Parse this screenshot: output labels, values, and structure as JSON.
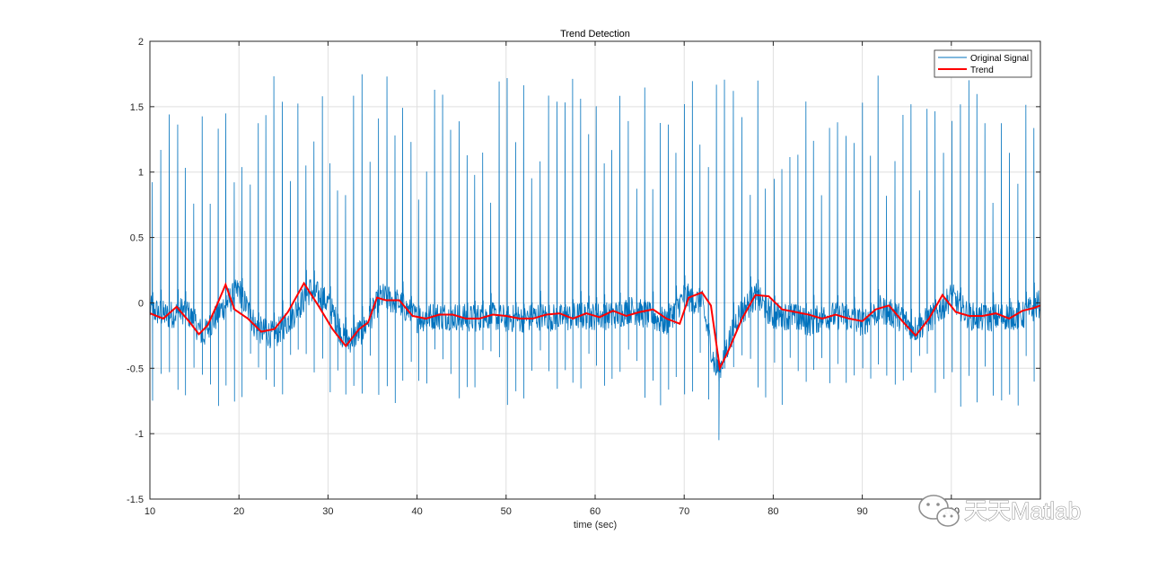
{
  "chart_data": {
    "type": "line",
    "title": "Trend Detection",
    "xlabel": "time (sec)",
    "ylabel": "",
    "xlim": [
      10,
      110
    ],
    "ylim": [
      -1.5,
      2
    ],
    "xticks": [
      10,
      20,
      30,
      40,
      50,
      60,
      70,
      80,
      90,
      100
    ],
    "yticks": [
      -1.5,
      -1,
      -0.5,
      0,
      0.5,
      1,
      1.5,
      2
    ],
    "grid": true,
    "legend_position": "top-right",
    "series": [
      {
        "name": "Original Signal",
        "color": "#0072bd",
        "style": "thin noisy signal with sharp periodic spikes",
        "x": [
          10,
          12,
          14,
          16,
          18,
          20,
          22,
          24,
          26,
          28,
          30,
          32,
          34,
          36,
          38,
          40,
          42,
          44,
          46,
          48,
          50,
          52,
          54,
          56,
          58,
          60,
          62,
          64,
          66,
          68,
          70,
          72,
          73.5,
          74,
          76,
          78,
          80,
          82,
          84,
          86,
          88,
          90,
          92,
          94,
          96,
          98,
          100,
          102,
          104,
          106,
          108,
          110
        ],
        "y": [
          -0.05,
          -0.1,
          -0.05,
          -0.25,
          -0.05,
          0.1,
          -0.2,
          -0.25,
          -0.1,
          0.1,
          0.0,
          -0.3,
          -0.2,
          0.05,
          0.0,
          -0.12,
          -0.1,
          -0.1,
          -0.12,
          -0.1,
          -0.12,
          -0.12,
          -0.1,
          -0.12,
          -0.1,
          -0.1,
          -0.1,
          -0.05,
          -0.1,
          -0.15,
          0.05,
          0.0,
          -0.5,
          -0.5,
          -0.1,
          0.05,
          -0.1,
          -0.1,
          -0.15,
          -0.1,
          -0.1,
          -0.15,
          -0.05,
          -0.1,
          -0.2,
          -0.1,
          0.05,
          -0.1,
          -0.12,
          -0.1,
          -0.1,
          0.0
        ],
        "spike_max": 1.75,
        "spike_min": -1.05
      },
      {
        "name": "Trend",
        "color": "#ff0000",
        "style": "thick smooth line",
        "x": [
          10,
          11.5,
          13,
          14.5,
          15.5,
          16.5,
          17.5,
          18.5,
          19.5,
          21,
          22.5,
          24,
          25.5,
          27.3,
          29,
          30.5,
          32,
          33.5,
          34.5,
          35.5,
          36.5,
          38,
          39.5,
          41,
          42.5,
          44,
          45.5,
          47,
          48.5,
          50,
          51.5,
          53,
          54.5,
          56,
          57.5,
          59,
          60.5,
          62,
          63.5,
          65,
          66.5,
          68,
          69.5,
          70.5,
          72,
          73,
          74,
          75,
          76.5,
          78,
          79.5,
          81,
          82.5,
          84,
          85.5,
          87,
          88.5,
          90,
          91.5,
          93,
          94.5,
          96,
          97.5,
          99,
          100.5,
          102,
          103.5,
          105,
          106.5,
          108,
          109.2,
          110
        ],
        "y": [
          -0.08,
          -0.12,
          -0.03,
          -0.15,
          -0.24,
          -0.17,
          -0.02,
          0.14,
          -0.05,
          -0.12,
          -0.22,
          -0.2,
          -0.07,
          0.15,
          -0.03,
          -0.2,
          -0.33,
          -0.2,
          -0.15,
          0.04,
          0.02,
          0.02,
          -0.1,
          -0.12,
          -0.09,
          -0.09,
          -0.12,
          -0.12,
          -0.09,
          -0.1,
          -0.12,
          -0.12,
          -0.09,
          -0.08,
          -0.12,
          -0.08,
          -0.11,
          -0.06,
          -0.1,
          -0.07,
          -0.05,
          -0.12,
          -0.16,
          0.04,
          0.08,
          -0.02,
          -0.5,
          -0.36,
          -0.12,
          0.06,
          0.05,
          -0.05,
          -0.07,
          -0.09,
          -0.12,
          -0.09,
          -0.12,
          -0.14,
          -0.05,
          -0.02,
          -0.14,
          -0.25,
          -0.12,
          0.06,
          -0.07,
          -0.1,
          -0.1,
          -0.08,
          -0.12,
          -0.06,
          -0.04,
          -0.02
        ]
      }
    ]
  },
  "watermark": {
    "text": "天天Matlab",
    "icon": "wechat-icon"
  }
}
